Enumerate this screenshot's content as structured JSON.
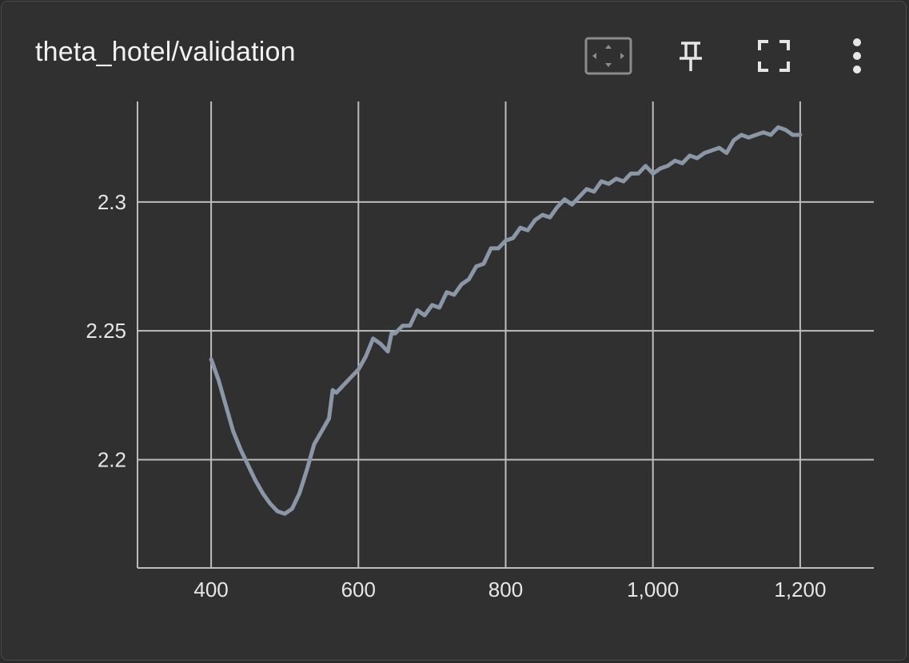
{
  "header": {
    "title": "theta_hotel/validation"
  },
  "toolbar": {
    "icons": [
      "fit-domain-icon",
      "pin-icon",
      "fullscreen-icon",
      "more-vert-icon"
    ]
  },
  "colors": {
    "background": "#303030",
    "grid": "#bdbdbd",
    "line": "#8a97a6",
    "text": "#f2f2f2"
  },
  "chart_data": {
    "type": "line",
    "title": "theta_hotel/validation",
    "xlabel": "",
    "ylabel": "",
    "xlim": [
      300,
      1300
    ],
    "ylim": [
      2.158,
      2.339
    ],
    "x_ticks": [
      400,
      600,
      800,
      1000,
      1200
    ],
    "x_tick_labels": [
      "400",
      "600",
      "800",
      "1,000",
      "1,200"
    ],
    "y_ticks": [
      2.2,
      2.25,
      2.3
    ],
    "y_tick_labels": [
      "2.2",
      "2.25",
      "2.3"
    ],
    "grid": true,
    "legend": "none",
    "series": [
      {
        "x": [
          400,
          410,
          420,
          430,
          440,
          450,
          460,
          470,
          480,
          490,
          500,
          510,
          520,
          530,
          540,
          550,
          560,
          565,
          570,
          580,
          590,
          600,
          610,
          620,
          630,
          640,
          645,
          650,
          660,
          670,
          680,
          690,
          700,
          710,
          720,
          730,
          740,
          750,
          760,
          770,
          780,
          790,
          800,
          810,
          820,
          830,
          840,
          850,
          860,
          870,
          880,
          890,
          900,
          910,
          920,
          930,
          940,
          950,
          960,
          970,
          980,
          990,
          1000,
          1010,
          1020,
          1030,
          1040,
          1050,
          1060,
          1070,
          1080,
          1090,
          1100,
          1110,
          1120,
          1130,
          1140,
          1150,
          1160,
          1170,
          1180,
          1190,
          1200
        ],
        "y": [
          2.239,
          2.231,
          2.221,
          2.211,
          2.204,
          2.198,
          2.192,
          2.187,
          2.183,
          2.18,
          2.179,
          2.181,
          2.187,
          2.196,
          2.206,
          2.211,
          2.216,
          2.227,
          2.226,
          2.229,
          2.232,
          2.235,
          2.24,
          2.247,
          2.245,
          2.242,
          2.249,
          2.249,
          2.252,
          2.252,
          2.258,
          2.256,
          2.26,
          2.259,
          2.265,
          2.264,
          2.268,
          2.27,
          2.275,
          2.276,
          2.282,
          2.282,
          2.285,
          2.286,
          2.29,
          2.289,
          2.293,
          2.295,
          2.294,
          2.298,
          2.301,
          2.299,
          2.302,
          2.305,
          2.304,
          2.308,
          2.307,
          2.309,
          2.308,
          2.311,
          2.311,
          2.314,
          2.311,
          2.313,
          2.314,
          2.316,
          2.315,
          2.318,
          2.317,
          2.319,
          2.32,
          2.321,
          2.319,
          2.324,
          2.326,
          2.325,
          2.326,
          2.327,
          2.326,
          2.329,
          2.328,
          2.326,
          2.326
        ]
      }
    ]
  }
}
